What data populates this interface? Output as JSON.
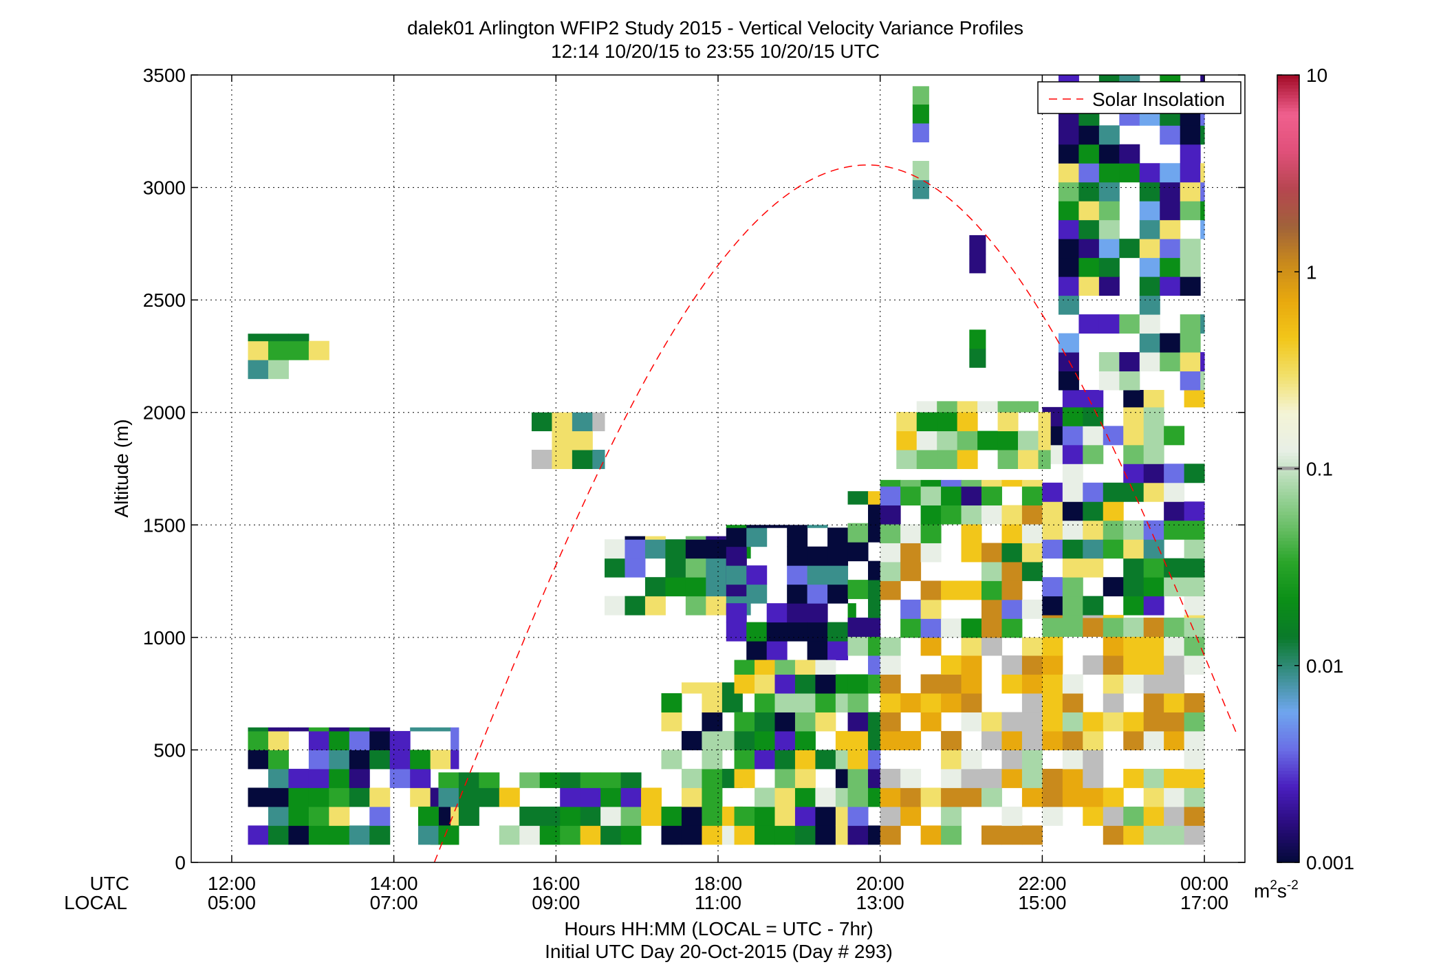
{
  "chart_data": {
    "type": "heatmap",
    "title": "dalek01 Arlington WFIP2 Study 2015 - Vertical Velocity Variance Profiles",
    "subtitle": "12:14 10/20/15 to 23:55 10/20/15  UTC",
    "ylabel": "Altitude (m)",
    "xlabel": "Hours HH:MM  (LOCAL = UTC - 7hr)",
    "xlabel2": "Initial UTC Day 20-Oct-2015 (Day # 293)",
    "x_row_labels": [
      "UTC",
      "LOCAL"
    ],
    "xlim_hours": [
      11.5,
      24.5
    ],
    "ylim": [
      0,
      3500
    ],
    "grid": true,
    "x_ticks": [
      {
        "hour": 12,
        "utc": "12:00",
        "local": "05:00"
      },
      {
        "hour": 14,
        "utc": "14:00",
        "local": "07:00"
      },
      {
        "hour": 16,
        "utc": "16:00",
        "local": "09:00"
      },
      {
        "hour": 18,
        "utc": "18:00",
        "local": "11:00"
      },
      {
        "hour": 20,
        "utc": "20:00",
        "local": "13:00"
      },
      {
        "hour": 22,
        "utc": "22:00",
        "local": "15:00"
      },
      {
        "hour": 24,
        "utc": "00:00",
        "local": "17:00"
      }
    ],
    "y_ticks": [
      "0",
      "500",
      "1000",
      "1500",
      "2000",
      "2500",
      "3000",
      "3500"
    ],
    "y_tick_values": [
      0,
      500,
      1000,
      1500,
      2000,
      2500,
      3000,
      3500
    ],
    "legend": {
      "label": "Solar Insolation",
      "placement": "top-right",
      "color": "#ff0000"
    },
    "solar_curve": {
      "start_hour": 14.5,
      "peak_hour": 19.85,
      "peak_altitude_m": 3100,
      "end_hour": 24.4,
      "end_altitude_m": 570
    },
    "colorbar": {
      "scale": "log",
      "range": [
        0.001,
        10
      ],
      "tick_values": [
        0.001,
        0.01,
        0.1,
        1,
        10
      ],
      "tick_labels": [
        "0.001",
        "0.01",
        "0.1",
        "1",
        "10"
      ],
      "unit_base": "m",
      "unit_sup1": "2",
      "unit_mid": "s",
      "unit_sup2": "-2",
      "colormap": [
        "#050a3c",
        "#2a0c7e",
        "#4a1fbf",
        "#6a6fe6",
        "#6fa6ee",
        "#3a8f8c",
        "#0a7a2a",
        "#0b8f17",
        "#2aa52a",
        "#6dc06a",
        "#a8d8a8",
        "#e8efe6",
        "#f4f4d6",
        "#f2e06a",
        "#f2c61a",
        "#e8a90e",
        "#c98a1c",
        "#a0623a",
        "#b64650",
        "#e0507a",
        "#f0608e",
        "#a50e2a"
      ]
    },
    "pixel_colors": [
      "#050a3c",
      "#2a0c7e",
      "#4a1fbf",
      "#6a6fe6",
      "#6fa6ee",
      "#3a8f8c",
      "#0a7a2a",
      "#0b8f17",
      "#2aa52a",
      "#6dc06a",
      "#a8d8a8",
      "#e8efe6",
      "#bdbdbd",
      "#f2e06a",
      "#f2c61a",
      "#e8a90e",
      "#c98a1c"
    ],
    "cells": {
      "cell_width_hours": 0.25,
      "cell_height_m": 84,
      "regions": [
        {
          "h0": 12.2,
          "h1": 13.2,
          "a0": 2150,
          "a1": 2350,
          "palette": [
            1,
            3,
            5,
            6,
            8,
            10,
            13,
            14
          ]
        },
        {
          "h0": 12.2,
          "h1": 14.8,
          "a0": 80,
          "a1": 600,
          "palette": [
            0,
            1,
            2,
            3,
            5,
            6,
            7,
            8,
            13
          ]
        },
        {
          "h0": 14.3,
          "h1": 15.3,
          "a0": 80,
          "a1": 400,
          "palette": [
            6,
            7,
            8,
            5,
            2
          ]
        },
        {
          "h0": 15.3,
          "h1": 17.5,
          "a0": 80,
          "a1": 400,
          "palette": [
            2,
            6,
            7,
            8,
            9,
            10,
            11,
            14
          ]
        },
        {
          "h0": 17.3,
          "h1": 18.3,
          "a0": 80,
          "a1": 800,
          "palette": [
            6,
            7,
            8,
            10,
            11,
            13,
            14,
            1,
            0
          ]
        },
        {
          "h0": 16.6,
          "h1": 18.4,
          "a0": 1100,
          "a1": 1450,
          "palette": [
            3,
            5,
            6,
            7,
            9,
            11,
            13,
            0,
            1
          ]
        },
        {
          "h0": 18.1,
          "h1": 19.7,
          "a0": 900,
          "a1": 1500,
          "palette": [
            0,
            0,
            0,
            1,
            2,
            3,
            5,
            6,
            7,
            14
          ]
        },
        {
          "h0": 18.2,
          "h1": 19.7,
          "a0": 80,
          "a1": 900,
          "palette": [
            6,
            7,
            8,
            9,
            10,
            11,
            14,
            13,
            2,
            0
          ]
        },
        {
          "h0": 19.6,
          "h1": 20.0,
          "a0": 80,
          "a1": 1650,
          "palette": [
            6,
            7,
            8,
            9,
            10,
            11,
            14,
            3,
            1,
            0
          ]
        },
        {
          "h0": 20.0,
          "h1": 22.0,
          "a0": 80,
          "a1": 1000,
          "palette": [
            13,
            14,
            14,
            15,
            15,
            16,
            16,
            11,
            10,
            9,
            12
          ]
        },
        {
          "h0": 20.0,
          "h1": 22.0,
          "a0": 1000,
          "a1": 1700,
          "palette": [
            6,
            7,
            8,
            9,
            10,
            11,
            13,
            14,
            3,
            1,
            16
          ]
        },
        {
          "h0": 22.0,
          "h1": 24.0,
          "a0": 80,
          "a1": 1100,
          "palette": [
            13,
            14,
            14,
            15,
            16,
            16,
            11,
            10,
            9,
            12
          ]
        },
        {
          "h0": 22.0,
          "h1": 24.0,
          "a0": 1100,
          "a1": 2100,
          "palette": [
            6,
            7,
            8,
            9,
            10,
            11,
            13,
            14,
            3,
            2,
            1,
            0,
            5
          ]
        },
        {
          "h0": 22.2,
          "h1": 24.0,
          "a0": 2100,
          "a1": 3500,
          "palette": [
            0,
            1,
            2,
            3,
            4,
            5,
            6,
            7,
            9,
            10,
            11,
            13
          ]
        },
        {
          "h0": 20.4,
          "h1": 20.6,
          "a0": 2950,
          "a1": 3450,
          "palette": [
            0,
            3,
            5,
            7,
            9,
            10,
            13
          ]
        },
        {
          "h0": 21.1,
          "h1": 21.3,
          "a0": 2200,
          "a1": 2800,
          "palette": [
            0,
            1,
            2,
            5,
            6,
            7,
            9
          ]
        },
        {
          "h0": 15.7,
          "h1": 16.6,
          "a0": 1750,
          "a1": 2000,
          "palette": [
            5,
            6,
            9,
            10,
            12,
            13
          ]
        },
        {
          "h0": 20.2,
          "h1": 22.1,
          "a0": 1750,
          "a1": 2050,
          "palette": [
            7,
            9,
            10,
            11,
            13,
            14
          ]
        }
      ]
    }
  }
}
